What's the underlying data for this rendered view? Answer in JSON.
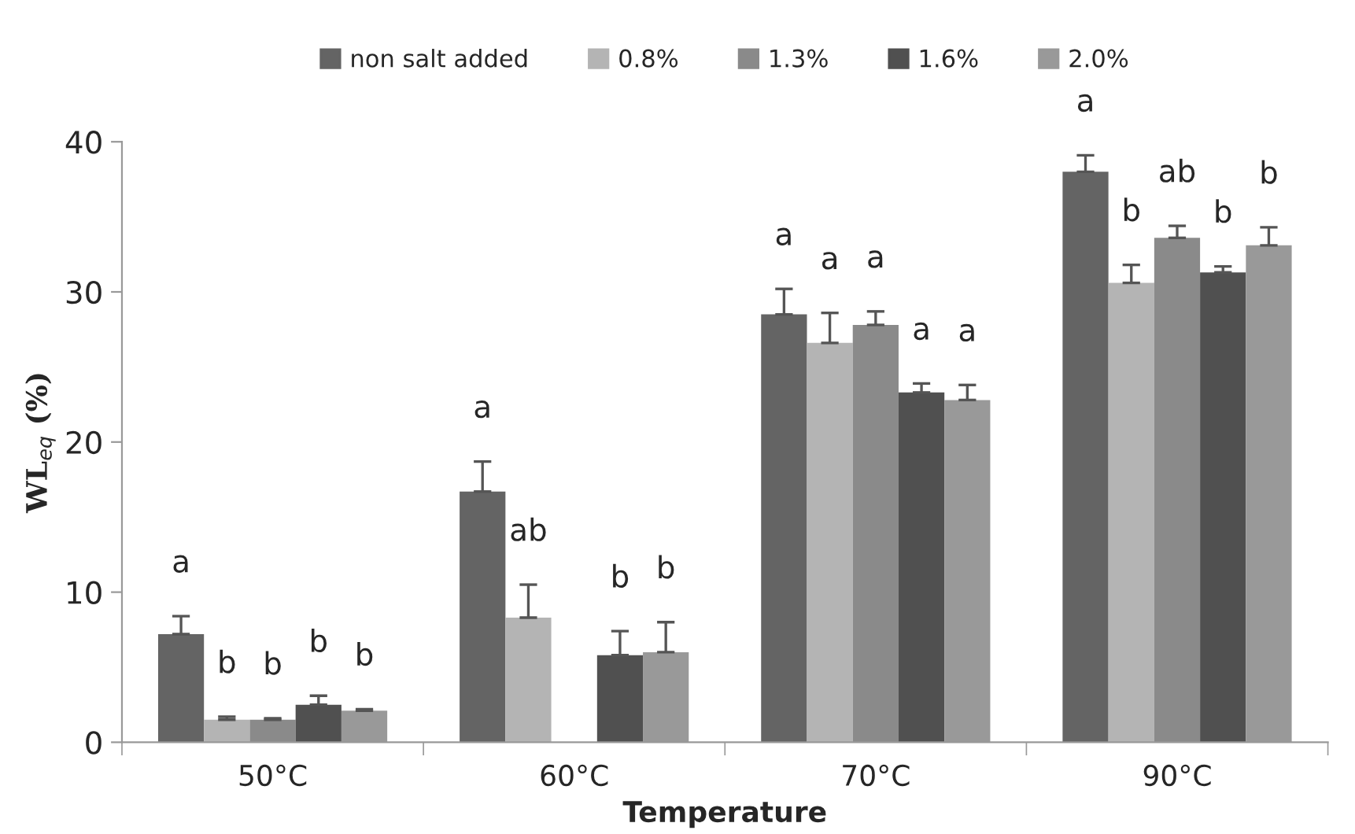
{
  "chart_data": {
    "type": "bar",
    "xlabel": "Temperature",
    "ylabel": "WL$_{eq}$ (%)",
    "categories": [
      "50°C",
      "60°C",
      "70°C",
      "90°C"
    ],
    "series": [
      {
        "name": "non salt added",
        "color": "#646464",
        "values": [
          7.2,
          16.7,
          28.5,
          38.0
        ],
        "errors": [
          1.2,
          2.0,
          1.7,
          1.1
        ],
        "value_labels": [
          "a",
          "a",
          "a",
          "a"
        ]
      },
      {
        "name": "0.8%",
        "color": "#b4b4b4",
        "values": [
          1.5,
          8.3,
          26.6,
          30.6
        ],
        "errors": [
          0.2,
          2.2,
          2.0,
          1.2
        ],
        "value_labels": [
          "b",
          "ab",
          "a",
          "b"
        ]
      },
      {
        "name": "1.3%",
        "color": "#8a8a8a",
        "values": [
          1.5,
          null,
          27.8,
          33.6
        ],
        "errors": [
          0.1,
          null,
          0.9,
          0.8
        ],
        "value_labels": [
          "b",
          null,
          "a",
          "ab"
        ]
      },
      {
        "name": "1.6%",
        "color": "#505050",
        "values": [
          2.5,
          5.8,
          23.3,
          31.3
        ],
        "errors": [
          0.6,
          1.6,
          0.6,
          0.4
        ],
        "value_labels": [
          "b",
          "b",
          "a",
          "b"
        ]
      },
      {
        "name": "2.0%",
        "color": "#999999",
        "values": [
          2.1,
          6.0,
          22.8,
          33.1
        ],
        "errors": [
          0.1,
          2.0,
          1.0,
          1.2
        ],
        "value_labels": [
          "b",
          "b",
          "a",
          "b"
        ]
      }
    ],
    "ylim": [
      0,
      40
    ],
    "yticks": [
      0,
      10,
      20,
      30,
      40
    ],
    "grid": false,
    "legend": "top"
  }
}
